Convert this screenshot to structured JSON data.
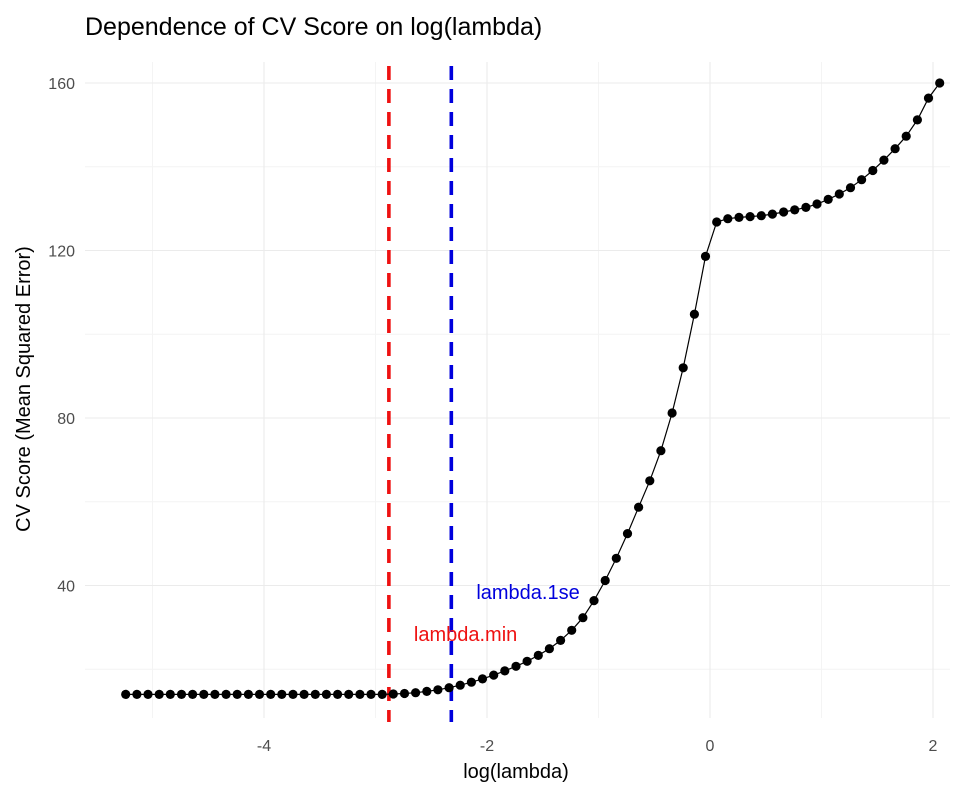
{
  "chart_data": {
    "type": "line",
    "title": "Dependence of CV Score on log(lambda)",
    "xlabel": "log(lambda)",
    "ylabel": "CV Score (Mean Squared Error)",
    "xlim": [
      -5.2,
      1.8
    ],
    "ylim": [
      14,
      160
    ],
    "x_ticks": [
      -4,
      -2,
      0,
      2
    ],
    "y_ticks": [
      40,
      80,
      120,
      160
    ],
    "grid": true,
    "series": [
      {
        "color": "#000000",
        "points": [
          [
            -5.24,
            14.0
          ],
          [
            -5.14,
            14.0
          ],
          [
            -5.04,
            14.0
          ],
          [
            -4.94,
            14.0
          ],
          [
            -4.84,
            14.0
          ],
          [
            -4.74,
            14.0
          ],
          [
            -4.64,
            14.0
          ],
          [
            -4.54,
            14.0
          ],
          [
            -4.44,
            14.0
          ],
          [
            -4.34,
            14.0
          ],
          [
            -4.24,
            14.0
          ],
          [
            -4.14,
            14.0
          ],
          [
            -4.04,
            14.0
          ],
          [
            -3.94,
            14.0
          ],
          [
            -3.84,
            14.0
          ],
          [
            -3.74,
            14.0
          ],
          [
            -3.64,
            14.0
          ],
          [
            -3.54,
            14.0
          ],
          [
            -3.44,
            14.0
          ],
          [
            -3.34,
            14.0
          ],
          [
            -3.24,
            14.0
          ],
          [
            -3.14,
            14.0
          ],
          [
            -3.04,
            14.0
          ],
          [
            -2.94,
            14.0
          ],
          [
            -2.84,
            14.1
          ],
          [
            -2.74,
            14.2
          ],
          [
            -2.64,
            14.4
          ],
          [
            -2.54,
            14.7
          ],
          [
            -2.44,
            15.1
          ],
          [
            -2.34,
            15.6
          ],
          [
            -2.24,
            16.2
          ],
          [
            -2.14,
            16.9
          ],
          [
            -2.04,
            17.7
          ],
          [
            -1.94,
            18.6
          ],
          [
            -1.84,
            19.6
          ],
          [
            -1.74,
            20.7
          ],
          [
            -1.64,
            21.9
          ],
          [
            -1.54,
            23.3
          ],
          [
            -1.44,
            24.9
          ],
          [
            -1.34,
            26.9
          ],
          [
            -1.24,
            29.3
          ],
          [
            -1.14,
            32.3
          ],
          [
            -1.04,
            36.4
          ],
          [
            -0.94,
            41.2
          ],
          [
            -0.84,
            46.5
          ],
          [
            -0.74,
            52.4
          ],
          [
            -0.64,
            58.7
          ],
          [
            -0.54,
            65.0
          ],
          [
            -0.44,
            72.2
          ],
          [
            -0.34,
            81.2
          ],
          [
            -0.24,
            92.0
          ],
          [
            -0.14,
            104.8
          ],
          [
            -0.04,
            118.6
          ],
          [
            0.06,
            126.8
          ],
          [
            0.16,
            127.6
          ],
          [
            0.26,
            127.9
          ],
          [
            0.36,
            128.1
          ],
          [
            0.46,
            128.3
          ],
          [
            0.56,
            128.7
          ],
          [
            0.66,
            129.2
          ],
          [
            0.76,
            129.7
          ],
          [
            0.86,
            130.3
          ],
          [
            0.96,
            131.1
          ],
          [
            1.06,
            132.2
          ],
          [
            1.16,
            133.5
          ],
          [
            1.26,
            135.0
          ],
          [
            1.36,
            136.9
          ],
          [
            1.46,
            139.1
          ],
          [
            1.56,
            141.6
          ],
          [
            1.66,
            144.3
          ],
          [
            1.76,
            147.3
          ],
          [
            1.86,
            151.2
          ],
          [
            1.96,
            156.4
          ],
          [
            2.06,
            160.0
          ]
        ]
      }
    ],
    "vlines": [
      {
        "x": -2.88,
        "color": "#ee1111",
        "style": "dashed",
        "label": "lambda.min"
      },
      {
        "x": -2.32,
        "color": "#0000dd",
        "style": "dashed",
        "label": "lambda.1se"
      }
    ]
  }
}
